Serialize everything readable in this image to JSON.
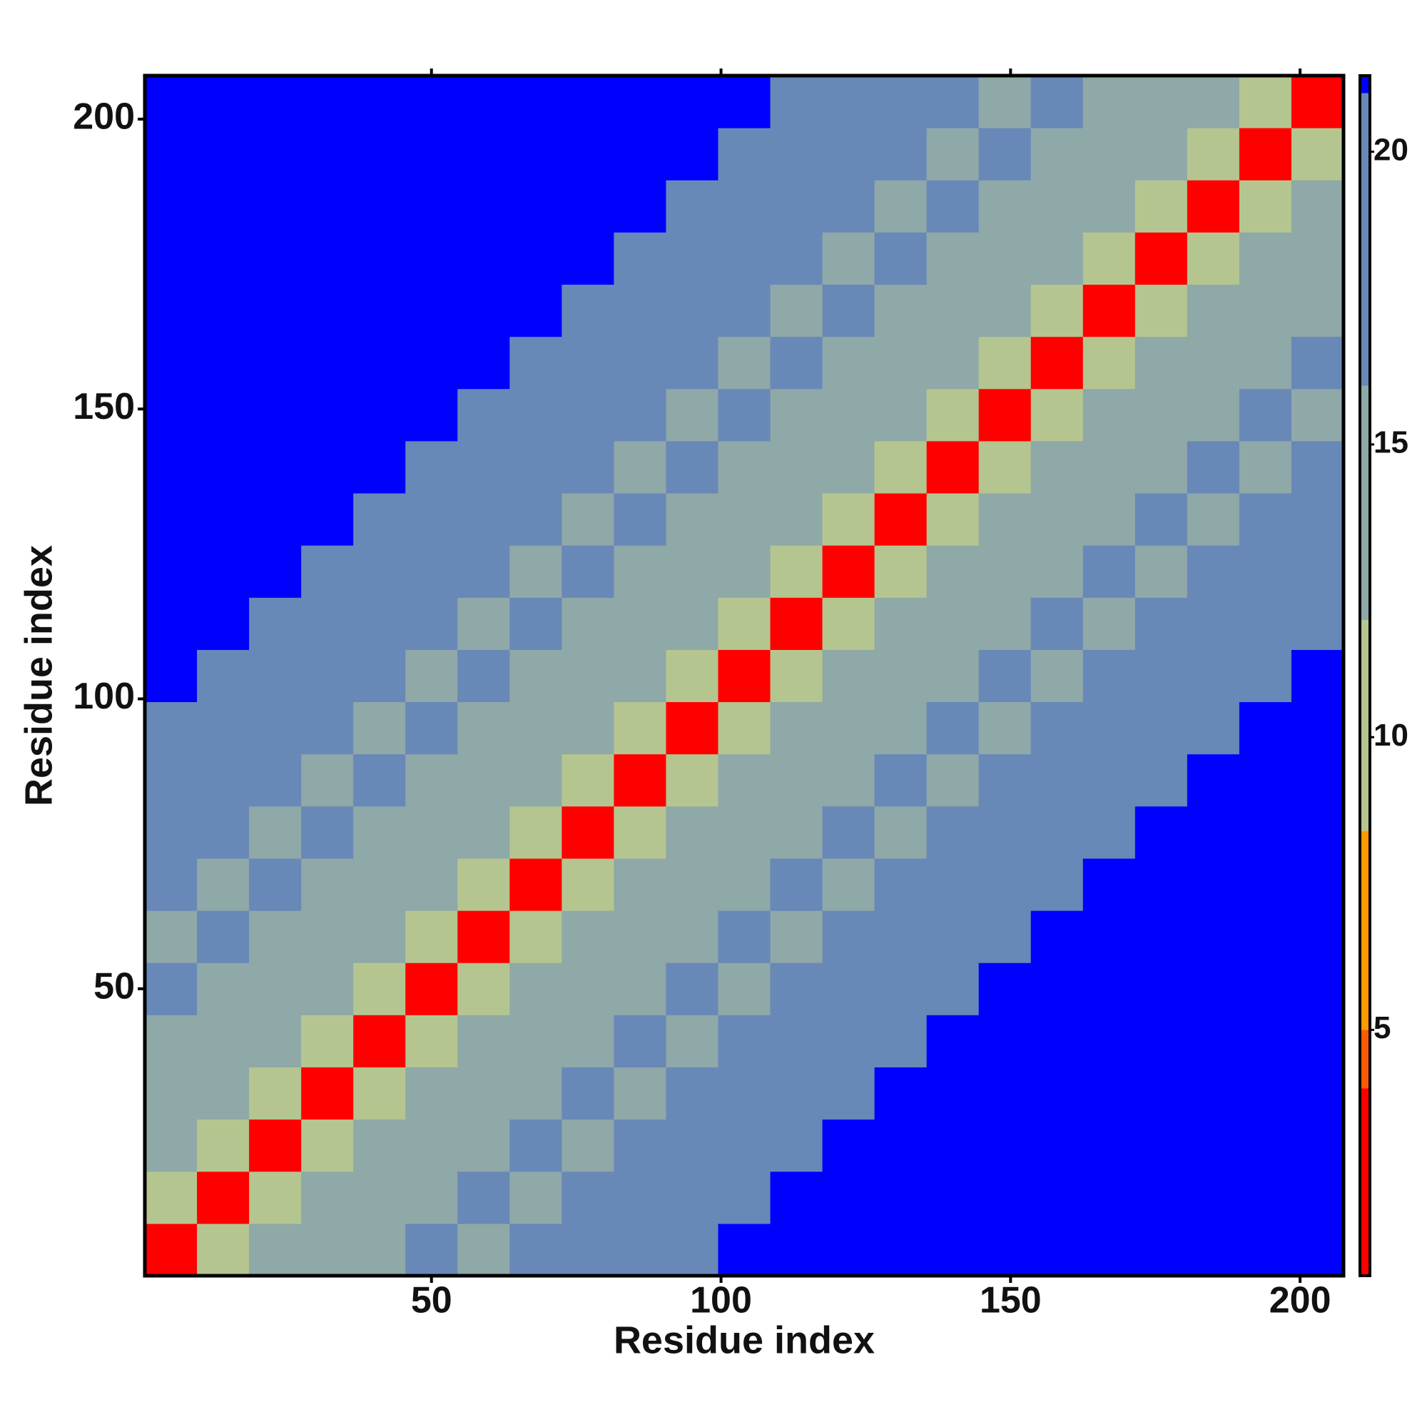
{
  "chart_data": {
    "type": "heatmap",
    "x_label": "Residue index",
    "y_label": "Residue index",
    "x": [
      5,
      14,
      23,
      32,
      41,
      50,
      59,
      68,
      77,
      86,
      95,
      104,
      113,
      122,
      131,
      140,
      149,
      158,
      167,
      176,
      185,
      194,
      203
    ],
    "y": [
      5,
      14,
      23,
      32,
      41,
      50,
      59,
      68,
      77,
      86,
      95,
      104,
      113,
      122,
      131,
      140,
      149,
      158,
      167,
      176,
      185,
      194,
      203
    ],
    "cell_size": 9,
    "z": [
      [
        3,
        10,
        14,
        13,
        13,
        16,
        15,
        16,
        17,
        18,
        19,
        22,
        22,
        22,
        22,
        22,
        22,
        22,
        22,
        22,
        22,
        22,
        22
      ],
      [
        10,
        3,
        10,
        14,
        13,
        13,
        16,
        15,
        16,
        17,
        18,
        19,
        22,
        22,
        22,
        22,
        22,
        22,
        22,
        22,
        22,
        22,
        22
      ],
      [
        14,
        10,
        3,
        10,
        14,
        13,
        13,
        16,
        15,
        16,
        17,
        18,
        19,
        22,
        22,
        22,
        22,
        22,
        22,
        22,
        22,
        22,
        22
      ],
      [
        13,
        14,
        10,
        3,
        10,
        14,
        13,
        13,
        16,
        15,
        16,
        17,
        18,
        19,
        22,
        22,
        22,
        22,
        22,
        22,
        22,
        22,
        22
      ],
      [
        13,
        13,
        14,
        10,
        3,
        10,
        14,
        13,
        13,
        16,
        15,
        16,
        17,
        18,
        19,
        22,
        22,
        22,
        22,
        22,
        22,
        22,
        22
      ],
      [
        16,
        13,
        13,
        14,
        10,
        3,
        10,
        14,
        13,
        13,
        16,
        15,
        16,
        17,
        18,
        19,
        22,
        22,
        22,
        22,
        22,
        22,
        22
      ],
      [
        15,
        16,
        13,
        13,
        14,
        10,
        3,
        10,
        14,
        13,
        13,
        16,
        15,
        16,
        17,
        18,
        19,
        22,
        22,
        22,
        22,
        22,
        22
      ],
      [
        16,
        15,
        16,
        13,
        13,
        14,
        10,
        3,
        10,
        14,
        13,
        13,
        16,
        15,
        16,
        17,
        18,
        19,
        22,
        22,
        22,
        22,
        22
      ],
      [
        17,
        16,
        15,
        16,
        13,
        13,
        14,
        10,
        3,
        10,
        14,
        13,
        13,
        16,
        15,
        16,
        17,
        18,
        19,
        22,
        22,
        22,
        22
      ],
      [
        18,
        17,
        16,
        15,
        16,
        13,
        13,
        14,
        10,
        3,
        10,
        14,
        13,
        13,
        16,
        15,
        16,
        17,
        18,
        19,
        22,
        22,
        22
      ],
      [
        19,
        18,
        17,
        16,
        15,
        16,
        13,
        13,
        14,
        10,
        3,
        10,
        14,
        13,
        13,
        16,
        15,
        16,
        17,
        18,
        19,
        22,
        22
      ],
      [
        22,
        19,
        18,
        17,
        16,
        15,
        16,
        13,
        13,
        14,
        10,
        3,
        10,
        14,
        13,
        13,
        16,
        15,
        16,
        17,
        18,
        19,
        22
      ],
      [
        22,
        22,
        19,
        18,
        17,
        16,
        15,
        16,
        13,
        13,
        14,
        10,
        3,
        10,
        14,
        13,
        13,
        16,
        15,
        16,
        17,
        18,
        19
      ],
      [
        22,
        22,
        22,
        19,
        18,
        17,
        16,
        15,
        16,
        13,
        13,
        14,
        10,
        3,
        10,
        14,
        13,
        13,
        16,
        15,
        16,
        17,
        18
      ],
      [
        22,
        22,
        22,
        22,
        19,
        18,
        17,
        16,
        15,
        16,
        13,
        13,
        14,
        10,
        3,
        10,
        14,
        13,
        13,
        16,
        15,
        16,
        17
      ],
      [
        22,
        22,
        22,
        22,
        22,
        19,
        18,
        17,
        16,
        15,
        16,
        13,
        13,
        14,
        10,
        3,
        10,
        14,
        13,
        13,
        16,
        15,
        16
      ],
      [
        22,
        22,
        22,
        22,
        22,
        22,
        19,
        18,
        17,
        16,
        15,
        16,
        13,
        13,
        14,
        10,
        3,
        10,
        14,
        13,
        13,
        16,
        15
      ],
      [
        22,
        22,
        22,
        22,
        22,
        22,
        22,
        19,
        18,
        17,
        16,
        15,
        16,
        13,
        13,
        14,
        10,
        3,
        10,
        14,
        13,
        13,
        16
      ],
      [
        22,
        22,
        22,
        22,
        22,
        22,
        22,
        22,
        19,
        18,
        17,
        16,
        15,
        16,
        13,
        13,
        14,
        10,
        3,
        10,
        14,
        13,
        13
      ],
      [
        22,
        22,
        22,
        22,
        22,
        22,
        22,
        22,
        22,
        19,
        18,
        17,
        16,
        15,
        16,
        13,
        13,
        14,
        10,
        3,
        10,
        14,
        13
      ],
      [
        22,
        22,
        22,
        22,
        22,
        22,
        22,
        22,
        22,
        22,
        19,
        18,
        17,
        16,
        15,
        16,
        13,
        13,
        14,
        10,
        3,
        10,
        14
      ],
      [
        22,
        22,
        22,
        22,
        22,
        22,
        22,
        22,
        22,
        22,
        22,
        19,
        18,
        17,
        16,
        15,
        16,
        13,
        13,
        14,
        10,
        3,
        10
      ],
      [
        22,
        22,
        22,
        22,
        22,
        22,
        22,
        22,
        22,
        22,
        22,
        22,
        19,
        18,
        17,
        16,
        15,
        16,
        13,
        13,
        14,
        10,
        3
      ]
    ],
    "xlim": [
      0.5,
      207.5
    ],
    "ylim": [
      0.5,
      207.5
    ],
    "xticks": [
      50,
      100,
      150,
      200
    ],
    "yticks": [
      50,
      100,
      150,
      200
    ],
    "colorbar": {
      "lim": [
        0.8,
        21.3
      ],
      "ticks": [
        5,
        10,
        15,
        20
      ],
      "stops": [
        [
          0.8,
          "#ff0000"
        ],
        [
          4,
          "#ff5a00"
        ],
        [
          5,
          "#ff9900"
        ],
        [
          8.4,
          "#b5c590"
        ],
        [
          12,
          "#8fa8a8"
        ],
        [
          16,
          "#6888b8"
        ],
        [
          21,
          "#0000ff"
        ]
      ]
    }
  }
}
